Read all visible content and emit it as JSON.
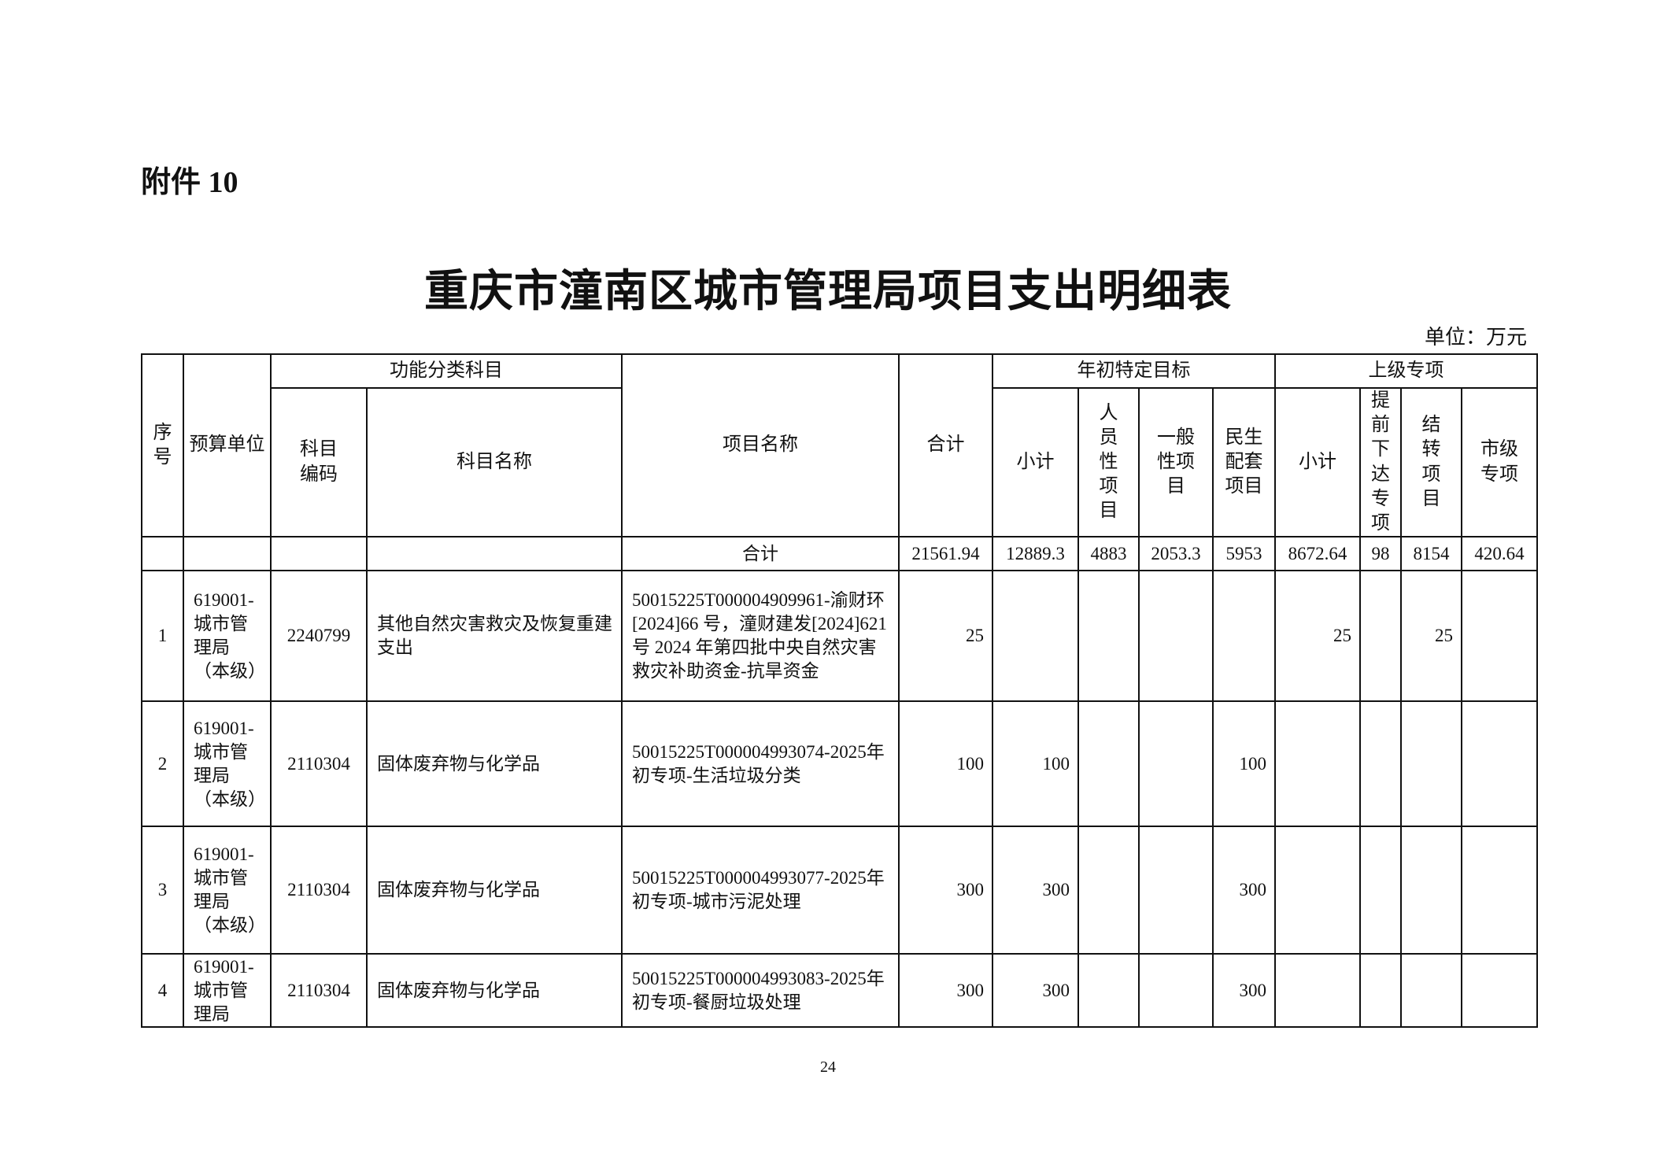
{
  "attachment": "附件 10",
  "title": "重庆市潼南区城市管理局项目支出明细表",
  "unit": "单位：万元",
  "page_number": "24",
  "headers": {
    "seq": "序号",
    "unit_name": "预算单位",
    "func_group": "功能分类科目",
    "code": "科目编码",
    "subject": "科目名称",
    "project": "项目名称",
    "total": "合计",
    "annual_group": "年初特定目标",
    "annual_sub": "小计",
    "personnel": "人员性项目",
    "general": "一般性项目",
    "livelihood": "民生配套项目",
    "upper_group": "上级专项",
    "upper_sub": "小计",
    "advance": "提前下达专项",
    "carryover": "结转项目",
    "city": "市级专项"
  },
  "total_row": {
    "label": "合计",
    "total": "21561.94",
    "annual_sub": "12889.3",
    "personnel": "4883",
    "general": "2053.3",
    "livelihood": "5953",
    "upper_sub": "8672.64",
    "advance": "98",
    "carryover": "8154",
    "city": "420.64"
  },
  "rows": [
    {
      "seq": "1",
      "unit": "619001-城市管理局（本级）",
      "code": "2240799",
      "subject": "其他自然灾害救灾及恢复重建支出",
      "project": "50015225T000004909961-渝财环[2024]66 号，潼财建发[2024]621 号 2024 年第四批中央自然灾害救灾补助资金-抗旱资金",
      "total": "25",
      "annual_sub": "",
      "personnel": "",
      "general": "",
      "livelihood": "",
      "upper_sub": "25",
      "advance": "",
      "carryover": "25",
      "city": ""
    },
    {
      "seq": "2",
      "unit": "619001-城市管理局（本级）",
      "code": "2110304",
      "subject": "固体废弃物与化学品",
      "project": "50015225T000004993074-2025年初专项-生活垃圾分类",
      "total": "100",
      "annual_sub": "100",
      "personnel": "",
      "general": "",
      "livelihood": "100",
      "upper_sub": "",
      "advance": "",
      "carryover": "",
      "city": ""
    },
    {
      "seq": "3",
      "unit": "619001-城市管理局（本级）",
      "code": "2110304",
      "subject": "固体废弃物与化学品",
      "project": "50015225T000004993077-2025年初专项-城市污泥处理",
      "total": "300",
      "annual_sub": "300",
      "personnel": "",
      "general": "",
      "livelihood": "300",
      "upper_sub": "",
      "advance": "",
      "carryover": "",
      "city": ""
    },
    {
      "seq": "4",
      "unit": "619001-城市管理局",
      "code": "2110304",
      "subject": "固体废弃物与化学品",
      "project": "50015225T000004993083-2025年初专项-餐厨垃圾处理",
      "total": "300",
      "annual_sub": "300",
      "personnel": "",
      "general": "",
      "livelihood": "300",
      "upper_sub": "",
      "advance": "",
      "carryover": "",
      "city": ""
    }
  ]
}
